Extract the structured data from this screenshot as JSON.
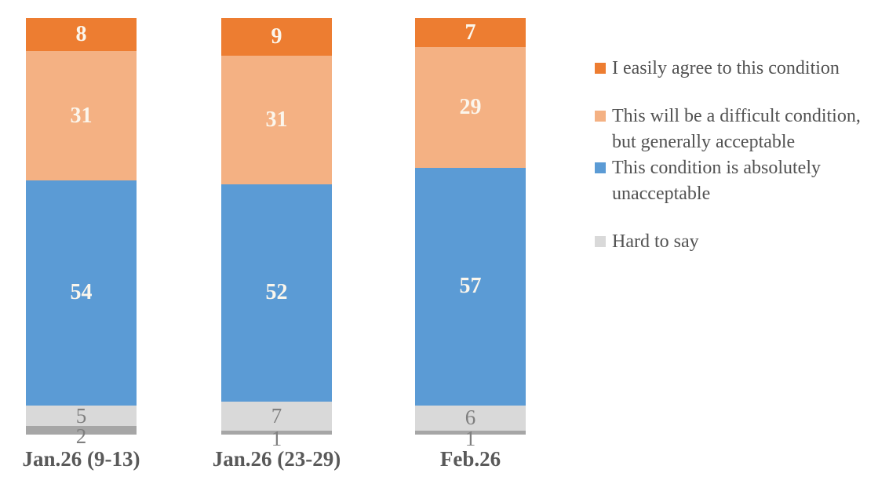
{
  "chart_data": {
    "type": "stacked-bar",
    "title": "",
    "orientation": "vertical",
    "stack_order": "top-to-bottom",
    "categories": [
      "Jan.26 (9-13)",
      "Jan.26 (23-29)",
      "Feb.26"
    ],
    "series": [
      {
        "name": "I easily agree to this condition",
        "color": "#ED7D31",
        "label_color": "#FBF6EC",
        "label_bold": true,
        "in_legend": true,
        "values": [
          8,
          9,
          7
        ]
      },
      {
        "name": "This will be a difficult condition, but generally acceptable",
        "color": "#F4B183",
        "label_color": "#FBF6EC",
        "label_bold": true,
        "in_legend": true,
        "values": [
          31,
          31,
          29
        ]
      },
      {
        "name": "This condition is absolutely unacceptable",
        "color": "#5B9BD5",
        "label_color": "#FBF6EC",
        "label_bold": true,
        "in_legend": true,
        "values": [
          54,
          52,
          57
        ]
      },
      {
        "name": "Hard to say",
        "color": "#D9D9D9",
        "label_color": "#7F7F7F",
        "label_bold": false,
        "in_legend": true,
        "values": [
          5,
          7,
          6
        ]
      },
      {
        "name": "",
        "color": "#A6A6A6",
        "label_color": "#7F7F7F",
        "label_bold": false,
        "in_legend": false,
        "values": [
          2,
          1,
          1
        ]
      }
    ],
    "ylim": [
      0,
      100
    ],
    "grid": false,
    "legend_position": "right",
    "axis_label_color": "#595959",
    "legend_text_color": "#525252",
    "background": "#FFFFFF"
  }
}
